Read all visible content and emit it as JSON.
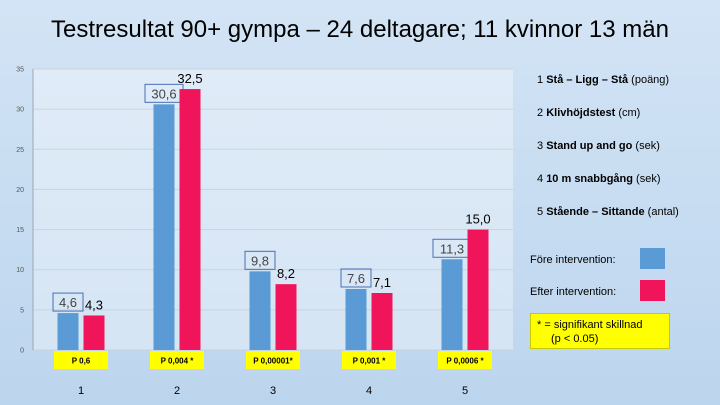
{
  "title": "Testresultat 90+ gympa – 24 deltagare; 11 kvinnor 13 män",
  "legend_items": [
    {
      "num": "1",
      "bold": "Stå – Ligg – Stå",
      "unit": " (poäng)"
    },
    {
      "num": "2",
      "bold": "Klivhöjdstest",
      "unit": " (cm)"
    },
    {
      "num": "3",
      "bold": "Stand up and go",
      "unit": " (sek)"
    },
    {
      "num": "4",
      "bold": "10 m snabbgång",
      "unit": " (sek)"
    },
    {
      "num": "5",
      "bold": "Stående – Sittande",
      "unit": " (antal)"
    }
  ],
  "note": {
    "line1": "* = signifikant skillnad",
    "line2": "(p < 0.05)"
  },
  "colors": {
    "before": "#5b9bd5",
    "after": "#f0145a",
    "pbox": "#ffff00"
  },
  "chart_data": {
    "type": "bar",
    "categories": [
      "1",
      "2",
      "3",
      "4",
      "5"
    ],
    "series": [
      {
        "name": "Före intervention:",
        "values": [
          4.6,
          30.6,
          9.8,
          7.6,
          11.3
        ],
        "labels": [
          "4,6",
          "30,6",
          "9,8",
          "7,6",
          "11,3"
        ]
      },
      {
        "name": "Efter intervention:",
        "values": [
          4.3,
          32.5,
          8.2,
          7.1,
          15.0
        ],
        "labels": [
          "4,3",
          "32,5",
          "8,2",
          "7,1",
          "15,0"
        ]
      }
    ],
    "p_values": [
      "P 0,6",
      "P 0,004 *",
      "P 0,00001*",
      "P 0,001 *",
      "P 0,0006 *"
    ],
    "yticks": [
      0,
      5,
      10,
      15,
      20,
      25,
      30,
      35
    ],
    "ylim": [
      0,
      35
    ],
    "grid": true,
    "legend_position": "right"
  }
}
